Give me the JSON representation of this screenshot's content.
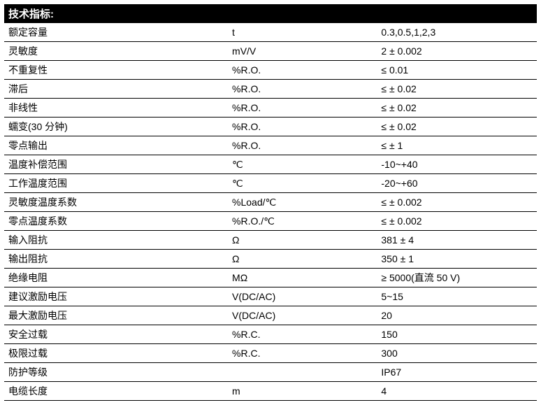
{
  "header_title": "技术指标:",
  "columns": [
    "param",
    "unit",
    "value"
  ],
  "rows": [
    {
      "param": "额定容量",
      "unit": "t",
      "value": "0.3,0.5,1,2,3"
    },
    {
      "param": "灵敏度",
      "unit": "mV/V",
      "value": "2 ± 0.002"
    },
    {
      "param": "不重复性",
      "unit": "%R.O.",
      "value": "≤ 0.01"
    },
    {
      "param": "滞后",
      "unit": "%R.O.",
      "value": "≤ ± 0.02"
    },
    {
      "param": "非线性",
      "unit": "%R.O.",
      "value": "≤ ± 0.02"
    },
    {
      "param": "蠕变(30 分钟)",
      "unit": "%R.O.",
      "value": "≤ ± 0.02"
    },
    {
      "param": "零点输出",
      "unit": "%R.O.",
      "value": "≤ ± 1"
    },
    {
      "param": "温度补偿范围",
      "unit": "℃",
      "value": "-10~+40"
    },
    {
      "param": "工作温度范围",
      "unit": "℃",
      "value": "-20~+60"
    },
    {
      "param": "灵敏度温度系数",
      "unit": "%Load/℃",
      "value": "≤ ± 0.002"
    },
    {
      "param": "零点温度系数",
      "unit": "%R.O./℃",
      "value": "≤ ± 0.002"
    },
    {
      "param": "输入阻抗",
      "unit": "Ω",
      "value": "381 ± 4"
    },
    {
      "param": "输出阻抗",
      "unit": "Ω",
      "value": "350 ± 1"
    },
    {
      "param": "绝缘电阻",
      "unit": "MΩ",
      "value": "≥ 5000(直流 50 V)"
    },
    {
      "param": "建议激励电压",
      "unit": "V(DC/AC)",
      "value": "5~15"
    },
    {
      "param": "最大激励电压",
      "unit": "V(DC/AC)",
      "value": "20"
    },
    {
      "param": "安全过载",
      "unit": "%R.C.",
      "value": "150"
    },
    {
      "param": "极限过载",
      "unit": "%R.C.",
      "value": "300"
    },
    {
      "param": "防护等级",
      "unit": "",
      "value": "IP67"
    },
    {
      "param": "电缆长度",
      "unit": "m",
      "value": "4"
    }
  ],
  "style": {
    "header_bg": "#000000",
    "header_fg": "#ffffff",
    "row_border": "#000000",
    "font_size_header": 15,
    "font_size_body": 14,
    "col_widths_pct": [
      42,
      28,
      30
    ]
  }
}
